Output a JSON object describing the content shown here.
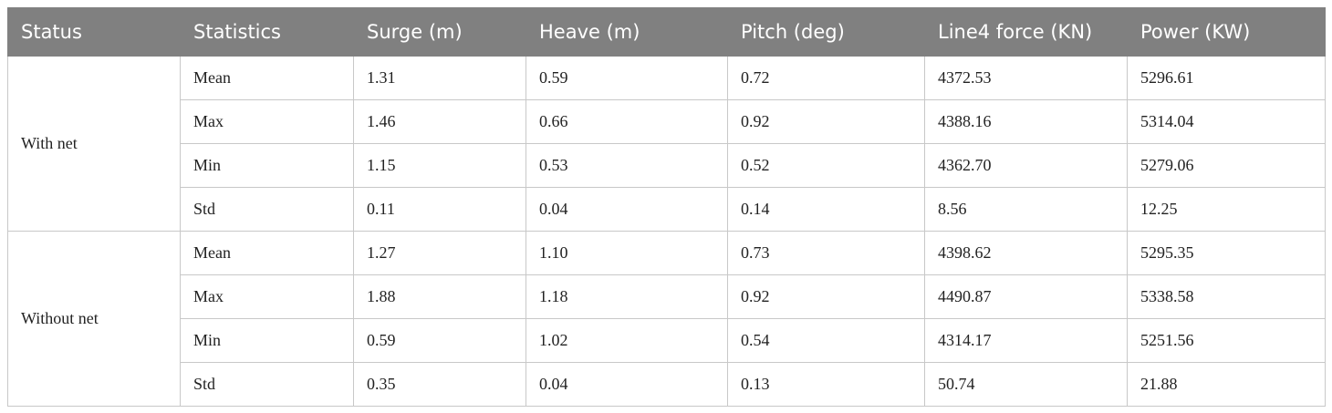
{
  "table": {
    "header": [
      "Status",
      "Statistics",
      "Surge (m)",
      "Heave (m)",
      "Pitch (deg)",
      "Line4 force (KN)",
      "Power (KW)"
    ],
    "groups": [
      {
        "status": "With net",
        "rows": [
          [
            "Mean",
            "1.31",
            "0.59",
            "0.72",
            "4372.53",
            "5296.61"
          ],
          [
            "Max",
            "1.46",
            "0.66",
            "0.92",
            "4388.16",
            "5314.04"
          ],
          [
            "Min",
            "1.15",
            "0.53",
            "0.52",
            "4362.70",
            "5279.06"
          ],
          [
            "Std",
            "0.11",
            "0.04",
            "0.14",
            "8.56",
            "12.25"
          ]
        ]
      },
      {
        "status": "Without net",
        "rows": [
          [
            "Mean",
            "1.27",
            "1.10",
            "0.73",
            "4398.62",
            "5295.35"
          ],
          [
            "Max",
            "1.88",
            "1.18",
            "0.92",
            "4490.87",
            "5338.58"
          ],
          [
            "Min",
            "0.59",
            "1.02",
            "0.54",
            "4314.17",
            "5251.56"
          ],
          [
            "Std",
            "0.35",
            "0.04",
            "0.13",
            "50.74",
            "21.88"
          ]
        ]
      }
    ]
  }
}
